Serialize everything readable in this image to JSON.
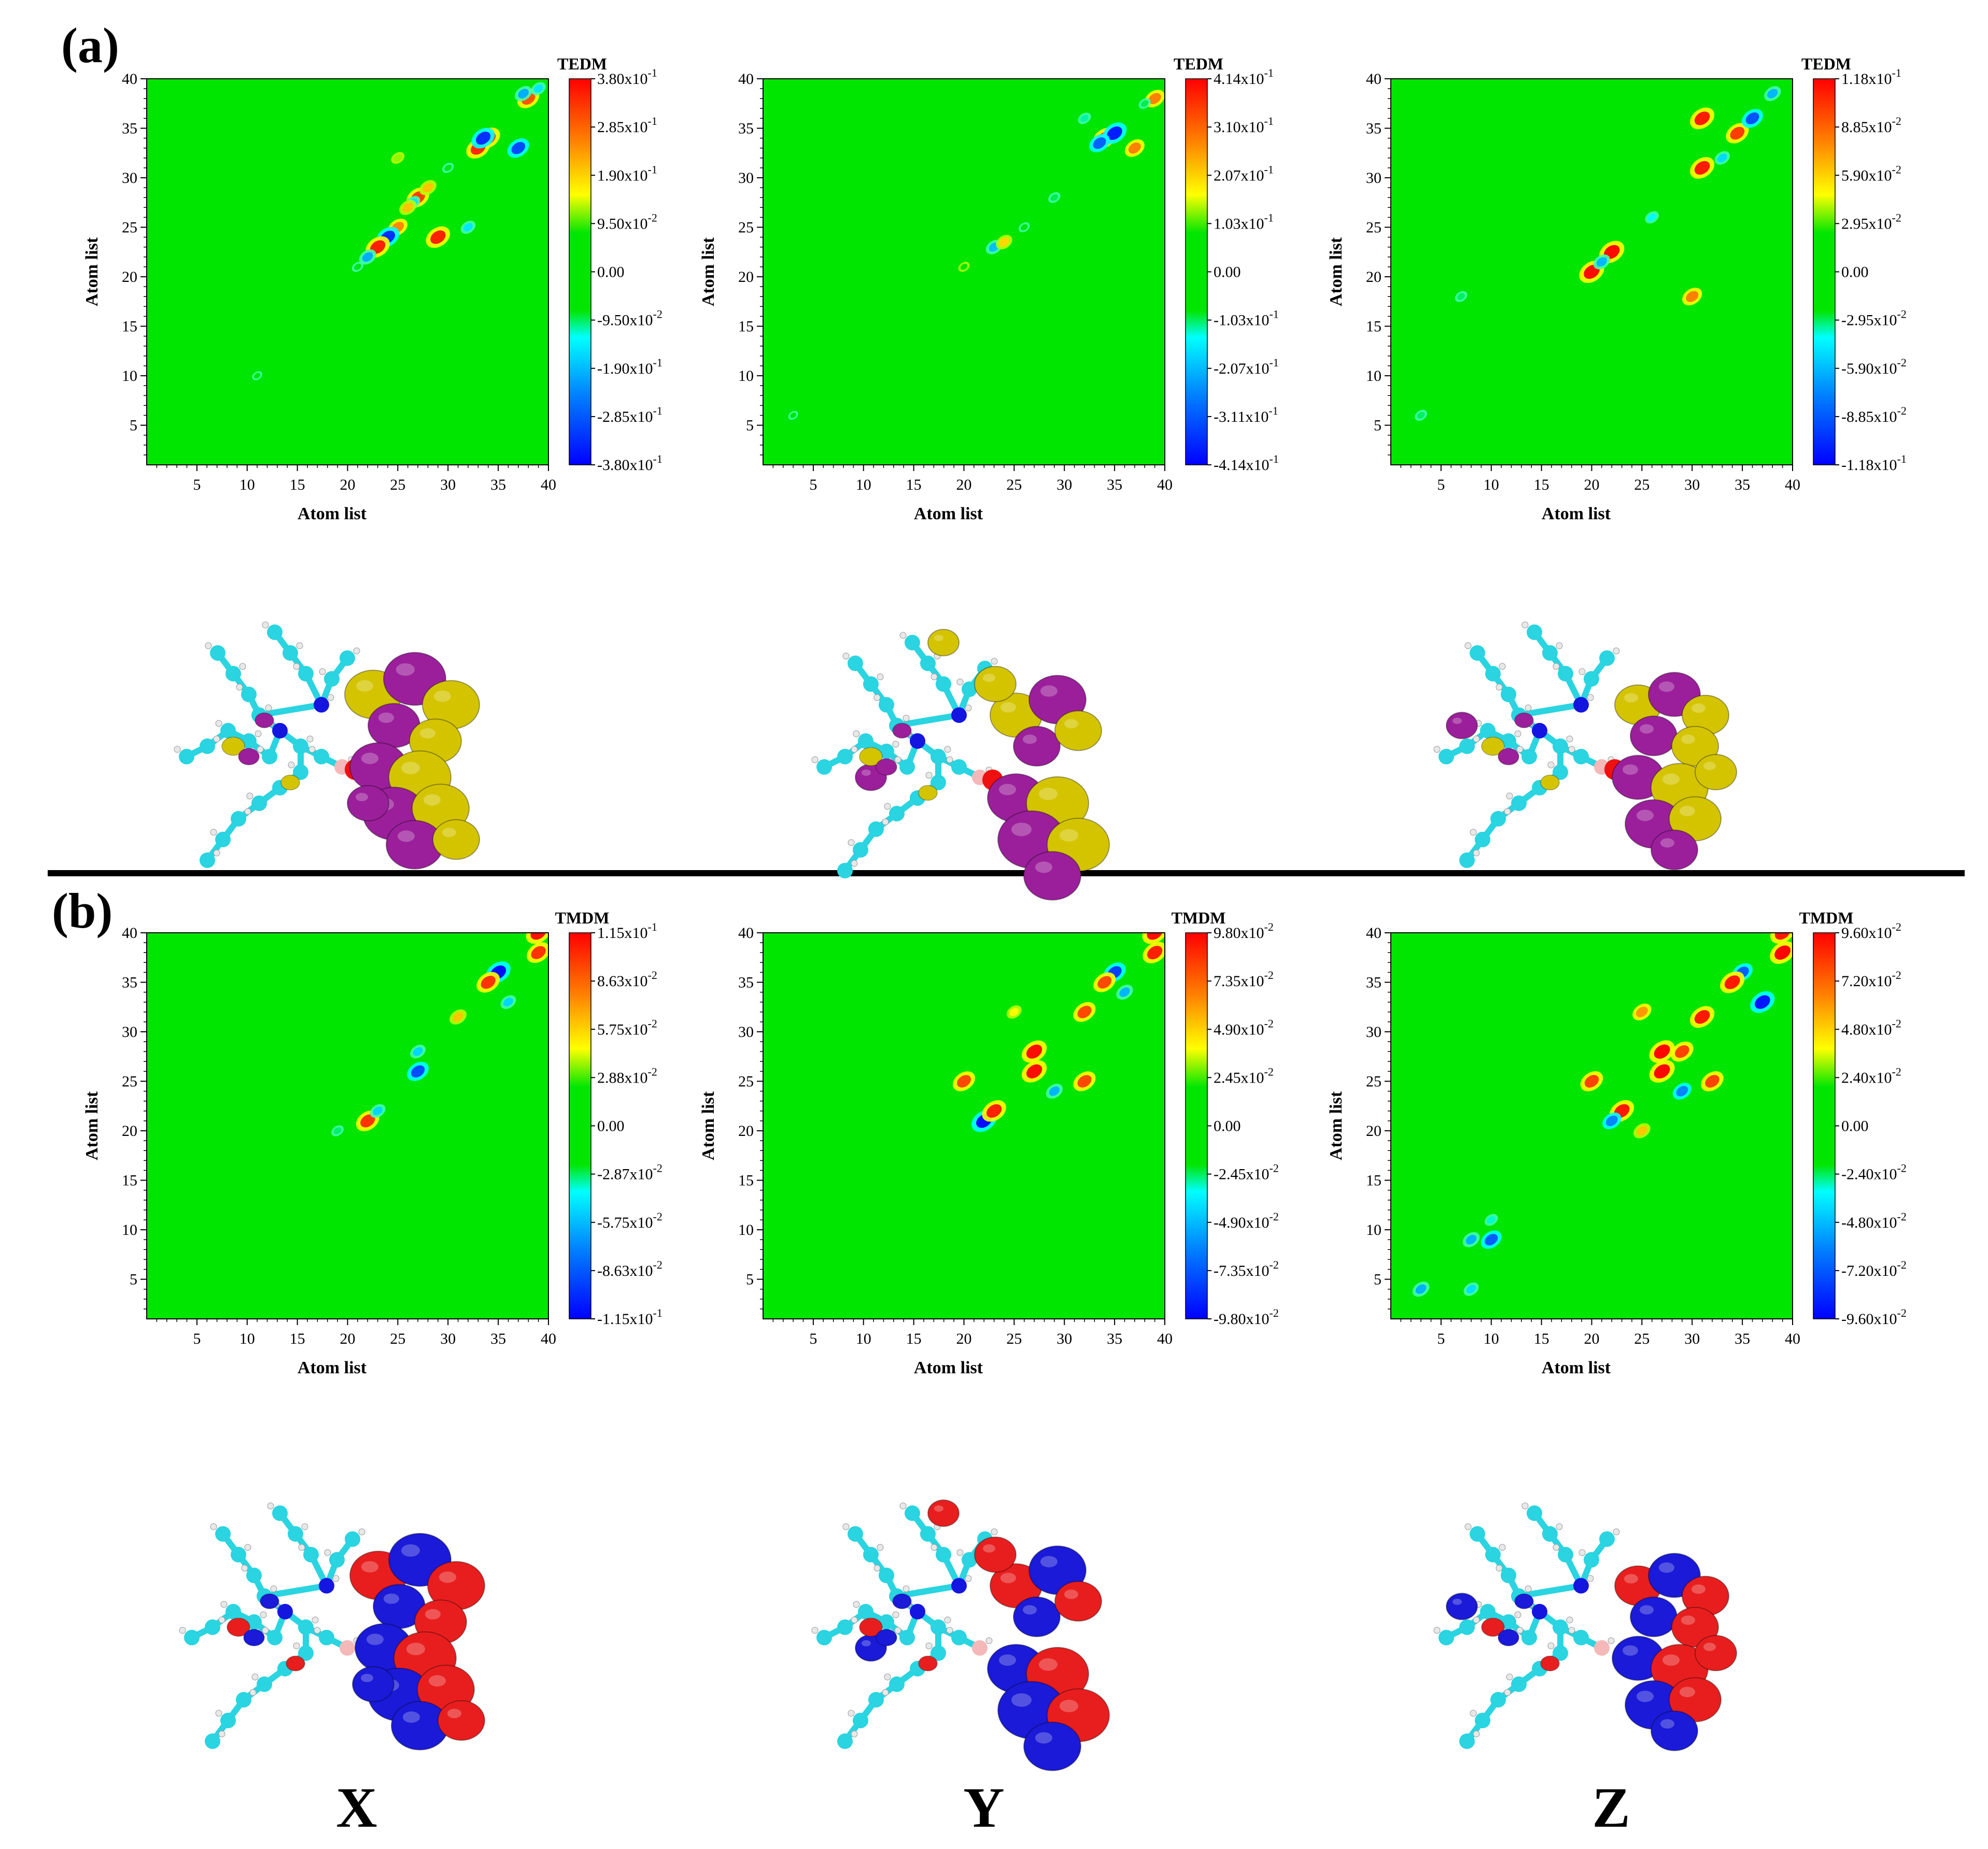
{
  "figure": {
    "panel_labels": [
      "(a)",
      "(b)"
    ],
    "column_labels": [
      "X",
      "Y",
      "Z"
    ],
    "colors": {
      "background": "#00e600",
      "scale": [
        "#0000ff",
        "#0080ff",
        "#00ffff",
        "#00e600",
        "#ffff00",
        "#ff8000",
        "#ff0000"
      ],
      "tedm_isosurface_positive": "#d4c400",
      "tedm_isosurface_negative": "#9b1f9b",
      "tmdm_isosurface_positive": "#e81e1e",
      "tmdm_isosurface_negative": "#1a1ad8",
      "carbon": "#2ad4e0",
      "nitrogen": "#1515e0",
      "oxygen": "#f01010",
      "boron": "#f4b8b8",
      "hydrogen": "#e8e8e8"
    }
  },
  "chart_data": [
    {
      "type": "heatmap",
      "panel": "(a)",
      "column": "X",
      "colorbar_title": "TEDM",
      "xlabel": "Atom list",
      "ylabel": "Atom list",
      "xlim": [
        0,
        40
      ],
      "ylim": [
        1,
        40
      ],
      "xticks": [
        "5",
        "10",
        "15",
        "20",
        "25",
        "30",
        "35",
        "40"
      ],
      "yticks": [
        "5",
        "10",
        "15",
        "20",
        "25",
        "30",
        "35",
        "40"
      ],
      "colorbar_ticks": [
        "3.80x10-1",
        "2.85x10-1",
        "1.90x10-1",
        "9.50x10-2",
        "0.00",
        "-9.50x10-2",
        "-1.90x10-1",
        "-2.85x10-1",
        "-3.80x10-1"
      ],
      "zlim": [
        -0.38,
        0.38
      ],
      "spots": [
        {
          "x": 38,
          "y": 38,
          "v": 0.3
        },
        {
          "x": 37.5,
          "y": 38.5,
          "v": -0.2
        },
        {
          "x": 39,
          "y": 39,
          "v": -0.15
        },
        {
          "x": 34,
          "y": 34,
          "v": 0.34
        },
        {
          "x": 33,
          "y": 33,
          "v": 0.34
        },
        {
          "x": 33.5,
          "y": 34,
          "v": -0.33
        },
        {
          "x": 37,
          "y": 33,
          "v": -0.3
        },
        {
          "x": 32,
          "y": 25,
          "v": -0.15
        },
        {
          "x": 29,
          "y": 24,
          "v": 0.35
        },
        {
          "x": 27,
          "y": 28,
          "v": 0.32
        },
        {
          "x": 26.5,
          "y": 27.5,
          "v": -0.15
        },
        {
          "x": 26,
          "y": 27,
          "v": 0.2
        },
        {
          "x": 28,
          "y": 29,
          "v": 0.2
        },
        {
          "x": 25,
          "y": 25,
          "v": 0.25
        },
        {
          "x": 24,
          "y": 24,
          "v": -0.33
        },
        {
          "x": 23,
          "y": 23,
          "v": 0.35
        },
        {
          "x": 22,
          "y": 22,
          "v": -0.2
        },
        {
          "x": 30,
          "y": 31,
          "v": -0.08
        },
        {
          "x": 25,
          "y": 32,
          "v": 0.12
        },
        {
          "x": 11,
          "y": 10,
          "v": -0.05
        },
        {
          "x": 21,
          "y": 21,
          "v": -0.08
        }
      ]
    },
    {
      "type": "heatmap",
      "panel": "(a)",
      "column": "Y",
      "colorbar_title": "TEDM",
      "xlabel": "Atom list",
      "ylabel": "Atom list",
      "xlim": [
        0,
        40
      ],
      "ylim": [
        1,
        40
      ],
      "xticks": [
        "5",
        "10",
        "15",
        "20",
        "25",
        "30",
        "35",
        "40"
      ],
      "yticks": [
        "5",
        "10",
        "15",
        "20",
        "25",
        "30",
        "35",
        "40"
      ],
      "colorbar_ticks": [
        "4.14x10-1",
        "3.10x10-1",
        "2.07x10-1",
        "1.03x10-1",
        "0.00",
        "-1.03x10-1",
        "-2.07x10-1",
        "-3.11x10-1",
        "-4.14x10-1"
      ],
      "zlim": [
        -0.414,
        0.414
      ],
      "spots": [
        {
          "x": 34,
          "y": 34,
          "v": 0.36
        },
        {
          "x": 35,
          "y": 34.5,
          "v": -0.38
        },
        {
          "x": 33.5,
          "y": 33.5,
          "v": -0.3
        },
        {
          "x": 37,
          "y": 33,
          "v": 0.28
        },
        {
          "x": 39,
          "y": 38,
          "v": 0.28
        },
        {
          "x": 38,
          "y": 37.5,
          "v": -0.1
        },
        {
          "x": 32,
          "y": 36,
          "v": -0.12
        },
        {
          "x": 23,
          "y": 23,
          "v": -0.2
        },
        {
          "x": 24,
          "y": 23.5,
          "v": 0.2
        },
        {
          "x": 29,
          "y": 28,
          "v": -0.1
        },
        {
          "x": 26,
          "y": 25,
          "v": -0.08
        },
        {
          "x": 20,
          "y": 21,
          "v": 0.08
        },
        {
          "x": 3,
          "y": 6,
          "v": -0.05
        }
      ]
    },
    {
      "type": "heatmap",
      "panel": "(a)",
      "column": "Z",
      "colorbar_title": "TEDM",
      "xlabel": "Atom list",
      "ylabel": "Atom list",
      "xlim": [
        0,
        40
      ],
      "ylim": [
        1,
        40
      ],
      "xticks": [
        "5",
        "10",
        "15",
        "20",
        "25",
        "30",
        "35",
        "40"
      ],
      "yticks": [
        "5",
        "10",
        "15",
        "20",
        "25",
        "30",
        "35",
        "40"
      ],
      "colorbar_ticks": [
        "1.18x10-1",
        "8.85x10-2",
        "5.90x10-2",
        "2.95x10-2",
        "0.00",
        "-2.95x10-2",
        "-5.90x10-2",
        "-8.85x10-2",
        "-1.18x10-1"
      ],
      "zlim": [
        -0.118,
        0.118
      ],
      "spots": [
        {
          "x": 20,
          "y": 20.5,
          "v": 0.115
        },
        {
          "x": 22,
          "y": 22.5,
          "v": 0.115
        },
        {
          "x": 21,
          "y": 21.5,
          "v": -0.06
        },
        {
          "x": 31,
          "y": 31,
          "v": 0.11
        },
        {
          "x": 31,
          "y": 36,
          "v": 0.11
        },
        {
          "x": 30,
          "y": 18,
          "v": 0.08
        },
        {
          "x": 34.5,
          "y": 34.5,
          "v": 0.1
        },
        {
          "x": 36,
          "y": 36,
          "v": -0.09
        },
        {
          "x": 38,
          "y": 38.5,
          "v": -0.06
        },
        {
          "x": 33,
          "y": 32,
          "v": -0.05
        },
        {
          "x": 26,
          "y": 26,
          "v": -0.04
        },
        {
          "x": 7,
          "y": 18,
          "v": -0.03
        },
        {
          "x": 3,
          "y": 6,
          "v": -0.03
        }
      ]
    },
    {
      "type": "heatmap",
      "panel": "(b)",
      "column": "X",
      "colorbar_title": "TMDM",
      "xlabel": "Atom list",
      "ylabel": "Atom list",
      "xlim": [
        0,
        40
      ],
      "ylim": [
        1,
        40
      ],
      "xticks": [
        "5",
        "10",
        "15",
        "20",
        "25",
        "30",
        "35",
        "40"
      ],
      "yticks": [
        "5",
        "10",
        "15",
        "20",
        "25",
        "30",
        "35",
        "40"
      ],
      "colorbar_ticks": [
        "1.15x10-1",
        "8.63x10-2",
        "5.75x10-2",
        "2.88x10-2",
        "0.00",
        "-2.87x10-2",
        "-5.75x10-2",
        "-8.63x10-2",
        "-1.15x10-1"
      ],
      "zlim": [
        -0.115,
        0.115
      ],
      "spots": [
        {
          "x": 39,
          "y": 40,
          "v": 0.11
        },
        {
          "x": 39,
          "y": 38,
          "v": 0.1
        },
        {
          "x": 35,
          "y": 36,
          "v": -0.11
        },
        {
          "x": 34,
          "y": 35,
          "v": 0.1
        },
        {
          "x": 31,
          "y": 31.5,
          "v": 0.06
        },
        {
          "x": 27,
          "y": 26,
          "v": -0.09
        },
        {
          "x": 27,
          "y": 28,
          "v": -0.05
        },
        {
          "x": 22,
          "y": 21,
          "v": 0.1
        },
        {
          "x": 23,
          "y": 22,
          "v": -0.05
        },
        {
          "x": 19,
          "y": 20,
          "v": -0.03
        },
        {
          "x": 36,
          "y": 33,
          "v": -0.05
        }
      ]
    },
    {
      "type": "heatmap",
      "panel": "(b)",
      "column": "Y",
      "colorbar_title": "TMDM",
      "xlabel": "Atom list",
      "ylabel": "Atom list",
      "xlim": [
        0,
        40
      ],
      "ylim": [
        1,
        40
      ],
      "xticks": [
        "5",
        "10",
        "15",
        "20",
        "25",
        "30",
        "35",
        "40"
      ],
      "yticks": [
        "5",
        "10",
        "15",
        "20",
        "25",
        "30",
        "35",
        "40"
      ],
      "colorbar_ticks": [
        "9.80x10-2",
        "7.35x10-2",
        "4.90x10-2",
        "2.45x10-2",
        "0.00",
        "-2.45x10-2",
        "-4.90x10-2",
        "-7.35x10-2",
        "-9.80x10-2"
      ],
      "zlim": [
        -0.098,
        0.098
      ],
      "spots": [
        {
          "x": 39,
          "y": 40,
          "v": 0.095
        },
        {
          "x": 39,
          "y": 38,
          "v": 0.09
        },
        {
          "x": 35,
          "y": 36,
          "v": -0.08
        },
        {
          "x": 34,
          "y": 35,
          "v": 0.08
        },
        {
          "x": 32,
          "y": 32,
          "v": 0.08
        },
        {
          "x": 27,
          "y": 28,
          "v": 0.095
        },
        {
          "x": 27,
          "y": 26,
          "v": 0.095
        },
        {
          "x": 32,
          "y": 25,
          "v": 0.08
        },
        {
          "x": 29,
          "y": 24,
          "v": -0.05
        },
        {
          "x": 20,
          "y": 25,
          "v": 0.08
        },
        {
          "x": 22,
          "y": 21,
          "v": -0.095
        },
        {
          "x": 23,
          "y": 22,
          "v": 0.09
        },
        {
          "x": 25,
          "y": 32,
          "v": 0.04
        },
        {
          "x": 36,
          "y": 34,
          "v": -0.05
        }
      ]
    },
    {
      "type": "heatmap",
      "panel": "(b)",
      "column": "Z",
      "colorbar_title": "TMDM",
      "xlabel": "Atom list",
      "ylabel": "Atom list",
      "xlim": [
        0,
        40
      ],
      "ylim": [
        1,
        40
      ],
      "xticks": [
        "5",
        "10",
        "15",
        "20",
        "25",
        "30",
        "35",
        "40"
      ],
      "yticks": [
        "5",
        "10",
        "15",
        "20",
        "25",
        "30",
        "35",
        "40"
      ],
      "colorbar_ticks": [
        "9.60x10-2",
        "7.20x10-2",
        "4.80x10-2",
        "2.40x10-2",
        "0.00",
        "-2.40x10-2",
        "-4.80x10-2",
        "-7.20x10-2",
        "-9.60x10-2"
      ],
      "zlim": [
        -0.096,
        0.096
      ],
      "spots": [
        {
          "x": 39,
          "y": 40,
          "v": 0.09
        },
        {
          "x": 39,
          "y": 38,
          "v": 0.095
        },
        {
          "x": 37,
          "y": 33,
          "v": -0.09
        },
        {
          "x": 35,
          "y": 36,
          "v": -0.07
        },
        {
          "x": 34,
          "y": 35,
          "v": 0.09
        },
        {
          "x": 31,
          "y": 31.5,
          "v": 0.09
        },
        {
          "x": 27,
          "y": 28,
          "v": 0.095
        },
        {
          "x": 27,
          "y": 26,
          "v": 0.095
        },
        {
          "x": 29,
          "y": 28,
          "v": 0.08
        },
        {
          "x": 32,
          "y": 25,
          "v": 0.08
        },
        {
          "x": 29,
          "y": 24,
          "v": -0.06
        },
        {
          "x": 25,
          "y": 32,
          "v": 0.06
        },
        {
          "x": 20,
          "y": 25,
          "v": 0.08
        },
        {
          "x": 23,
          "y": 22,
          "v": 0.09
        },
        {
          "x": 22,
          "y": 21,
          "v": -0.06
        },
        {
          "x": 25,
          "y": 20,
          "v": 0.05
        },
        {
          "x": 10,
          "y": 9,
          "v": -0.07
        },
        {
          "x": 8,
          "y": 9,
          "v": -0.05
        },
        {
          "x": 10,
          "y": 11,
          "v": -0.03
        },
        {
          "x": 8,
          "y": 4,
          "v": -0.04
        },
        {
          "x": 3,
          "y": 4,
          "v": -0.05
        }
      ]
    }
  ]
}
